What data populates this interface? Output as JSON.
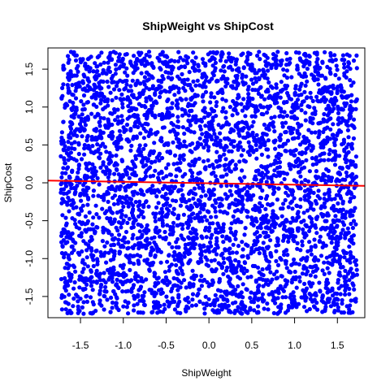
{
  "chart_data": {
    "type": "scatter",
    "title": "ShipWeight vs ShipCost",
    "xlabel": "ShipWeight",
    "ylabel": "ShipCost",
    "xlim": [
      -1.88,
      1.82
    ],
    "ylim": [
      -1.78,
      1.78
    ],
    "xticks": [
      "-1.5",
      "-1.0",
      "-0.5",
      "0.0",
      "0.5",
      "1.0",
      "1.5"
    ],
    "yticks": [
      "-1.5",
      "-1.0",
      "-0.5",
      "0.0",
      "0.5",
      "1.0",
      "1.5"
    ],
    "series": [
      {
        "point_color": "#0000ff",
        "point_count": 4000,
        "x_range": [
          -1.73,
          1.73
        ],
        "y_range": [
          -1.73,
          1.73
        ],
        "distribution": "uniform"
      }
    ],
    "regression_line": {
      "color": "#ff0000",
      "x": [
        -1.88,
        1.82
      ],
      "y": [
        0.03,
        -0.04
      ]
    },
    "grid": false,
    "legend": "none"
  }
}
